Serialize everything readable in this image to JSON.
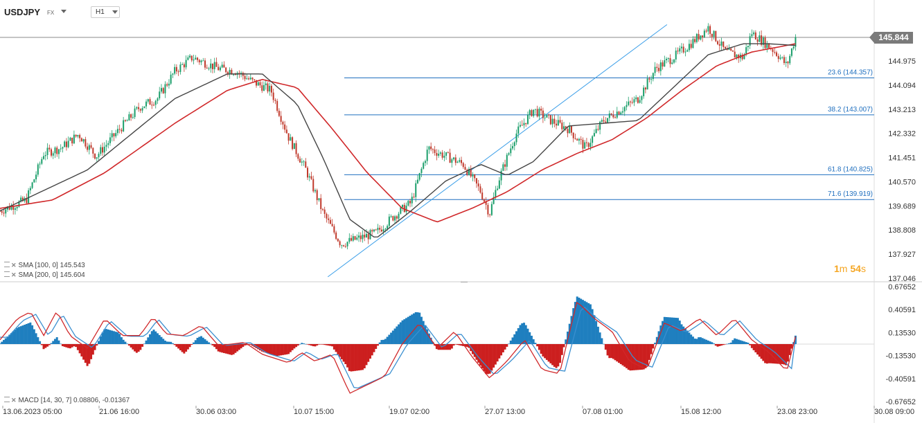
{
  "header": {
    "symbol": "USDJPY",
    "symbol_type": "FX",
    "timeframe": "H1"
  },
  "current_price": "145.844",
  "timer": {
    "minutes": "1",
    "m": "m",
    "seconds": "54",
    "s": "s"
  },
  "indicators": [
    {
      "label": "SMA [100, 0] 145.543",
      "color": "#444444"
    },
    {
      "label": "SMA [200, 0] 145.604",
      "color": "#d0282a"
    }
  ],
  "macd_legend": "MACD [14, 30, 7] 0.08806, -0.01367",
  "chart_data": [
    {
      "type": "candlestick",
      "symbol": "USDJPY",
      "ylim": [
        137.046,
        146.3
      ],
      "y_ticks": [
        "144.975",
        "144.094",
        "143.213",
        "142.332",
        "141.451",
        "140.570",
        "139.689",
        "138.808",
        "137.927",
        "137.046"
      ],
      "x_ticks": [
        "13.06.2023 05:00",
        "21.06 16:00",
        "30.06 03:00",
        "10.07 15:00",
        "19.07 02:00",
        "27.07 13:00",
        "07.08 01:00",
        "15.08 12:00",
        "23.08 23:00",
        "30.08 09:00"
      ],
      "price_path": [
        {
          "x": 0,
          "y": 139.5
        },
        {
          "x": 0.03,
          "y": 139.9
        },
        {
          "x": 0.05,
          "y": 141.6
        },
        {
          "x": 0.07,
          "y": 141.8
        },
        {
          "x": 0.09,
          "y": 142.3
        },
        {
          "x": 0.11,
          "y": 141.5
        },
        {
          "x": 0.14,
          "y": 142.6
        },
        {
          "x": 0.16,
          "y": 143.3
        },
        {
          "x": 0.18,
          "y": 143.6
        },
        {
          "x": 0.2,
          "y": 144.6
        },
        {
          "x": 0.22,
          "y": 145.1
        },
        {
          "x": 0.25,
          "y": 144.7
        },
        {
          "x": 0.27,
          "y": 144.6
        },
        {
          "x": 0.29,
          "y": 144.2
        },
        {
          "x": 0.31,
          "y": 143.9
        },
        {
          "x": 0.33,
          "y": 142.2
        },
        {
          "x": 0.35,
          "y": 141.0
        },
        {
          "x": 0.37,
          "y": 139.4
        },
        {
          "x": 0.39,
          "y": 138.3
        },
        {
          "x": 0.41,
          "y": 138.5
        },
        {
          "x": 0.43,
          "y": 138.7
        },
        {
          "x": 0.45,
          "y": 139.3
        },
        {
          "x": 0.47,
          "y": 139.8
        },
        {
          "x": 0.49,
          "y": 141.8
        },
        {
          "x": 0.51,
          "y": 141.5
        },
        {
          "x": 0.53,
          "y": 141.2
        },
        {
          "x": 0.55,
          "y": 140.2
        },
        {
          "x": 0.56,
          "y": 139.4
        },
        {
          "x": 0.57,
          "y": 140.6
        },
        {
          "x": 0.59,
          "y": 142.3
        },
        {
          "x": 0.61,
          "y": 143.2
        },
        {
          "x": 0.63,
          "y": 142.8
        },
        {
          "x": 0.65,
          "y": 142.5
        },
        {
          "x": 0.67,
          "y": 141.8
        },
        {
          "x": 0.69,
          "y": 142.8
        },
        {
          "x": 0.71,
          "y": 143.2
        },
        {
          "x": 0.73,
          "y": 143.6
        },
        {
          "x": 0.75,
          "y": 144.7
        },
        {
          "x": 0.77,
          "y": 145.1
        },
        {
          "x": 0.79,
          "y": 145.6
        },
        {
          "x": 0.81,
          "y": 146.2
        },
        {
          "x": 0.83,
          "y": 145.3
        },
        {
          "x": 0.85,
          "y": 145.1
        },
        {
          "x": 0.86,
          "y": 146.0
        },
        {
          "x": 0.88,
          "y": 145.5
        },
        {
          "x": 0.89,
          "y": 145.2
        },
        {
          "x": 0.9,
          "y": 144.8
        },
        {
          "x": 0.91,
          "y": 145.84
        }
      ],
      "sma100_path": [
        {
          "x": 0,
          "y": 139.5
        },
        {
          "x": 0.1,
          "y": 141.0
        },
        {
          "x": 0.2,
          "y": 143.6
        },
        {
          "x": 0.26,
          "y": 144.5
        },
        {
          "x": 0.3,
          "y": 144.5
        },
        {
          "x": 0.34,
          "y": 143.4
        },
        {
          "x": 0.37,
          "y": 141.4
        },
        {
          "x": 0.4,
          "y": 139.2
        },
        {
          "x": 0.43,
          "y": 138.5
        },
        {
          "x": 0.47,
          "y": 139.5
        },
        {
          "x": 0.51,
          "y": 140.6
        },
        {
          "x": 0.55,
          "y": 141.2
        },
        {
          "x": 0.58,
          "y": 140.8
        },
        {
          "x": 0.61,
          "y": 141.3
        },
        {
          "x": 0.65,
          "y": 142.6
        },
        {
          "x": 0.69,
          "y": 142.7
        },
        {
          "x": 0.73,
          "y": 142.8
        },
        {
          "x": 0.77,
          "y": 144.0
        },
        {
          "x": 0.81,
          "y": 145.2
        },
        {
          "x": 0.85,
          "y": 145.6
        },
        {
          "x": 0.88,
          "y": 145.6
        },
        {
          "x": 0.91,
          "y": 145.54
        }
      ],
      "sma200_path": [
        {
          "x": 0,
          "y": 139.6
        },
        {
          "x": 0.06,
          "y": 139.9
        },
        {
          "x": 0.12,
          "y": 140.9
        },
        {
          "x": 0.2,
          "y": 142.7
        },
        {
          "x": 0.26,
          "y": 143.9
        },
        {
          "x": 0.3,
          "y": 144.3
        },
        {
          "x": 0.34,
          "y": 144.0
        },
        {
          "x": 0.38,
          "y": 142.5
        },
        {
          "x": 0.42,
          "y": 140.9
        },
        {
          "x": 0.46,
          "y": 139.6
        },
        {
          "x": 0.5,
          "y": 139.1
        },
        {
          "x": 0.54,
          "y": 139.6
        },
        {
          "x": 0.58,
          "y": 140.2
        },
        {
          "x": 0.62,
          "y": 141.0
        },
        {
          "x": 0.66,
          "y": 141.6
        },
        {
          "x": 0.7,
          "y": 142.1
        },
        {
          "x": 0.74,
          "y": 142.9
        },
        {
          "x": 0.78,
          "y": 143.9
        },
        {
          "x": 0.82,
          "y": 144.8
        },
        {
          "x": 0.86,
          "y": 145.3
        },
        {
          "x": 0.91,
          "y": 145.6
        }
      ],
      "trend_line": {
        "from": {
          "x": 0.375,
          "y": 137.1
        },
        "to": {
          "x": 0.763,
          "y": 146.3
        }
      },
      "fibonacci": [
        {
          "label": "23.6 (144.357)",
          "level": 144.357
        },
        {
          "label": "38.2 (143.007)",
          "level": 143.007
        },
        {
          "label": "61.8 (140.825)",
          "level": 140.825
        },
        {
          "label": "71.6 (139.919)",
          "level": 139.919
        }
      ],
      "colors": {
        "up": "#1a9e6a",
        "down": "#c0392b",
        "sma100": "#444444",
        "sma200": "#d0282a",
        "fib": "#1f6fbf",
        "trend": "#3a9ee8"
      }
    },
    {
      "type": "histogram",
      "name": "MACD",
      "ylim": [
        -0.67652,
        0.67652
      ],
      "y_ticks": [
        "0.67652",
        "0.40591",
        "0.13530",
        "-0.13530",
        "-0.40591",
        "-0.67652"
      ],
      "macd_path": [
        {
          "x": 0,
          "y": 0.05
        },
        {
          "x": 0.02,
          "y": 0.3
        },
        {
          "x": 0.035,
          "y": 0.38
        },
        {
          "x": 0.05,
          "y": 0.1
        },
        {
          "x": 0.065,
          "y": 0.39
        },
        {
          "x": 0.08,
          "y": 0.1
        },
        {
          "x": 0.1,
          "y": -0.05
        },
        {
          "x": 0.12,
          "y": 0.3
        },
        {
          "x": 0.14,
          "y": 0.1
        },
        {
          "x": 0.16,
          "y": 0.1
        },
        {
          "x": 0.175,
          "y": 0.32
        },
        {
          "x": 0.19,
          "y": 0.12
        },
        {
          "x": 0.21,
          "y": 0.1
        },
        {
          "x": 0.23,
          "y": 0.22
        },
        {
          "x": 0.25,
          "y": -0.02
        },
        {
          "x": 0.28,
          "y": 0.02
        },
        {
          "x": 0.3,
          "y": -0.12
        },
        {
          "x": 0.33,
          "y": -0.22
        },
        {
          "x": 0.345,
          "y": -0.1
        },
        {
          "x": 0.36,
          "y": -0.2
        },
        {
          "x": 0.38,
          "y": -0.12
        },
        {
          "x": 0.4,
          "y": -0.58
        },
        {
          "x": 0.42,
          "y": -0.48
        },
        {
          "x": 0.44,
          "y": -0.38
        },
        {
          "x": 0.46,
          "y": 0.0
        },
        {
          "x": 0.48,
          "y": 0.25
        },
        {
          "x": 0.5,
          "y": -0.05
        },
        {
          "x": 0.52,
          "y": 0.15
        },
        {
          "x": 0.54,
          "y": -0.15
        },
        {
          "x": 0.56,
          "y": -0.4
        },
        {
          "x": 0.58,
          "y": -0.2
        },
        {
          "x": 0.6,
          "y": 0.05
        },
        {
          "x": 0.62,
          "y": -0.3
        },
        {
          "x": 0.64,
          "y": -0.35
        },
        {
          "x": 0.66,
          "y": 0.5
        },
        {
          "x": 0.68,
          "y": 0.3
        },
        {
          "x": 0.7,
          "y": 0.15
        },
        {
          "x": 0.72,
          "y": -0.2
        },
        {
          "x": 0.74,
          "y": -0.3
        },
        {
          "x": 0.76,
          "y": 0.25
        },
        {
          "x": 0.78,
          "y": 0.15
        },
        {
          "x": 0.8,
          "y": 0.3
        },
        {
          "x": 0.82,
          "y": 0.1
        },
        {
          "x": 0.84,
          "y": 0.3
        },
        {
          "x": 0.86,
          "y": 0.05
        },
        {
          "x": 0.88,
          "y": -0.1
        },
        {
          "x": 0.9,
          "y": -0.32
        },
        {
          "x": 0.91,
          "y": 0.08806
        }
      ],
      "signal_lag": 0.006,
      "colors": {
        "macd": "#d0282a",
        "signal": "#3a8fd0",
        "hist_pos": "#1f7fbf",
        "hist_neg": "#cc1f1f"
      }
    }
  ]
}
